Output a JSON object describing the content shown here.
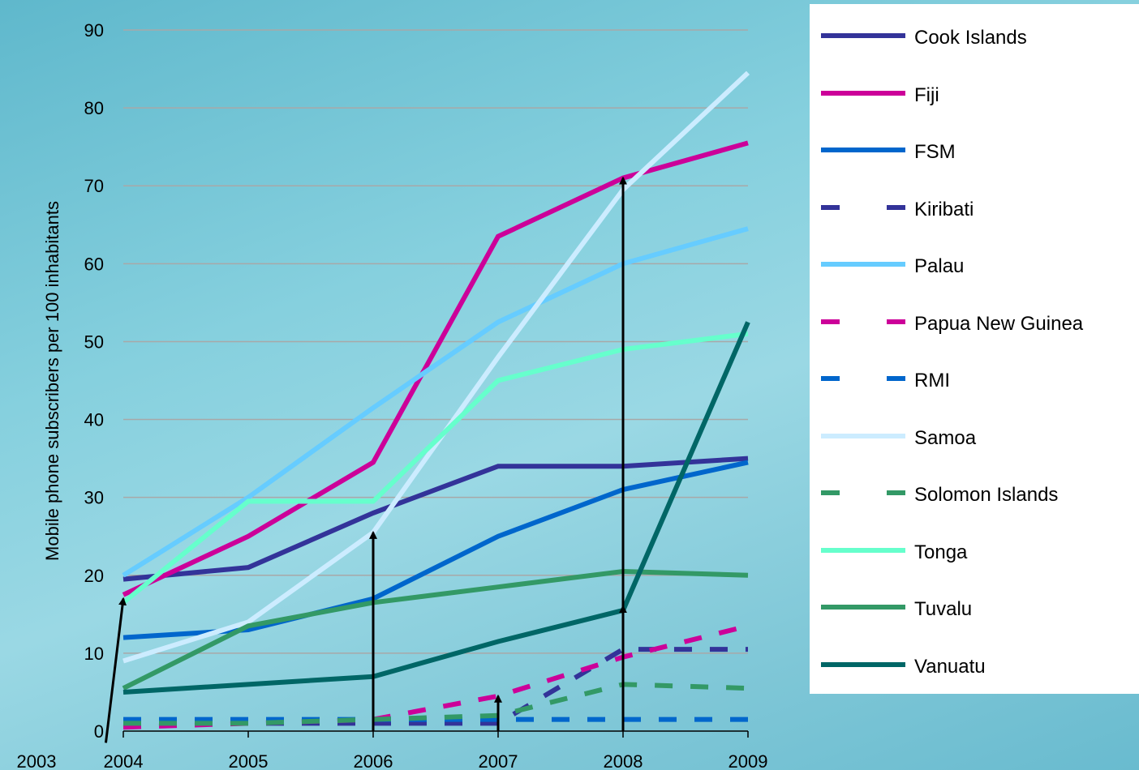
{
  "chart_data": {
    "type": "line",
    "title": "",
    "xlabel": "",
    "ylabel": "Mobile phone subscribers per 100 inhabitants",
    "ylim": [
      0,
      90
    ],
    "y_ticks": [
      "0",
      "10",
      "20",
      "30",
      "40",
      "50",
      "60",
      "70",
      "80",
      "90"
    ],
    "x_ticks": [
      "2004",
      "2005",
      "2006",
      "2007",
      "2008",
      "2009"
    ],
    "extra_x_label": "2003",
    "x": [
      2004,
      2005,
      2006,
      2007,
      2008,
      2009
    ],
    "grid": true,
    "legend_position": "right",
    "series": [
      {
        "name": "Cook Islands",
        "color": "#333399",
        "dash": "solid",
        "values": [
          19.5,
          21,
          28,
          34,
          34,
          35
        ]
      },
      {
        "name": "Fiji",
        "color": "#cc0099",
        "dash": "solid",
        "values": [
          17.5,
          25,
          34.5,
          63.5,
          71,
          75.5
        ]
      },
      {
        "name": "FSM",
        "color": "#0066cc",
        "dash": "solid",
        "values": [
          12,
          13,
          17,
          25,
          31,
          34.5
        ]
      },
      {
        "name": "Kiribati",
        "color": "#333399",
        "dash": "dashed",
        "values": [
          1,
          1,
          1,
          1,
          10.5,
          10.5
        ]
      },
      {
        "name": "Palau",
        "color": "#66ccff",
        "dash": "solid",
        "values": [
          20,
          30,
          41.5,
          52.5,
          60,
          64.5
        ]
      },
      {
        "name": "Papua New Guinea",
        "color": "#cc0099",
        "dash": "dashed",
        "values": [
          0.5,
          1,
          1.5,
          4.5,
          9.5,
          13.5
        ]
      },
      {
        "name": "RMI",
        "color": "#0066cc",
        "dash": "dashed",
        "values": [
          1.5,
          1.5,
          1.5,
          1.5,
          1.5,
          1.5
        ]
      },
      {
        "name": "Samoa",
        "color": "#ccecff",
        "dash": "solid",
        "values": [
          9,
          14,
          25.5,
          48,
          69.5,
          84.5
        ]
      },
      {
        "name": "Solomon Islands",
        "color": "#339966",
        "dash": "dashed",
        "values": [
          1,
          1,
          1.5,
          2,
          6,
          5.5
        ]
      },
      {
        "name": "Tonga",
        "color": "#66ffcc",
        "dash": "solid",
        "values": [
          16.5,
          29.5,
          29.5,
          45,
          49,
          51
        ]
      },
      {
        "name": "Tuvalu",
        "color": "#339966",
        "dash": "solid",
        "values": [
          5.5,
          13.5,
          16.5,
          18.5,
          20.5,
          20
        ]
      },
      {
        "name": "Vanuatu",
        "color": "#006666",
        "dash": "solid",
        "values": [
          5,
          6,
          7,
          11.5,
          15.5,
          52.5
        ]
      }
    ],
    "annotations": [
      {
        "type": "arrow",
        "from": [
          2003.5,
          -1.5
        ],
        "to": [
          2004,
          17
        ]
      },
      {
        "type": "arrow",
        "from": [
          2006,
          0
        ],
        "to": [
          2006,
          25.5
        ]
      },
      {
        "type": "arrow",
        "from": [
          2007,
          0
        ],
        "to": [
          2007,
          4.5
        ]
      },
      {
        "type": "arrow",
        "from": [
          2008,
          0
        ],
        "to": [
          2008,
          71
        ]
      },
      {
        "type": "arrow",
        "from": [
          2008,
          0
        ],
        "to": [
          2008,
          16
        ]
      }
    ]
  }
}
